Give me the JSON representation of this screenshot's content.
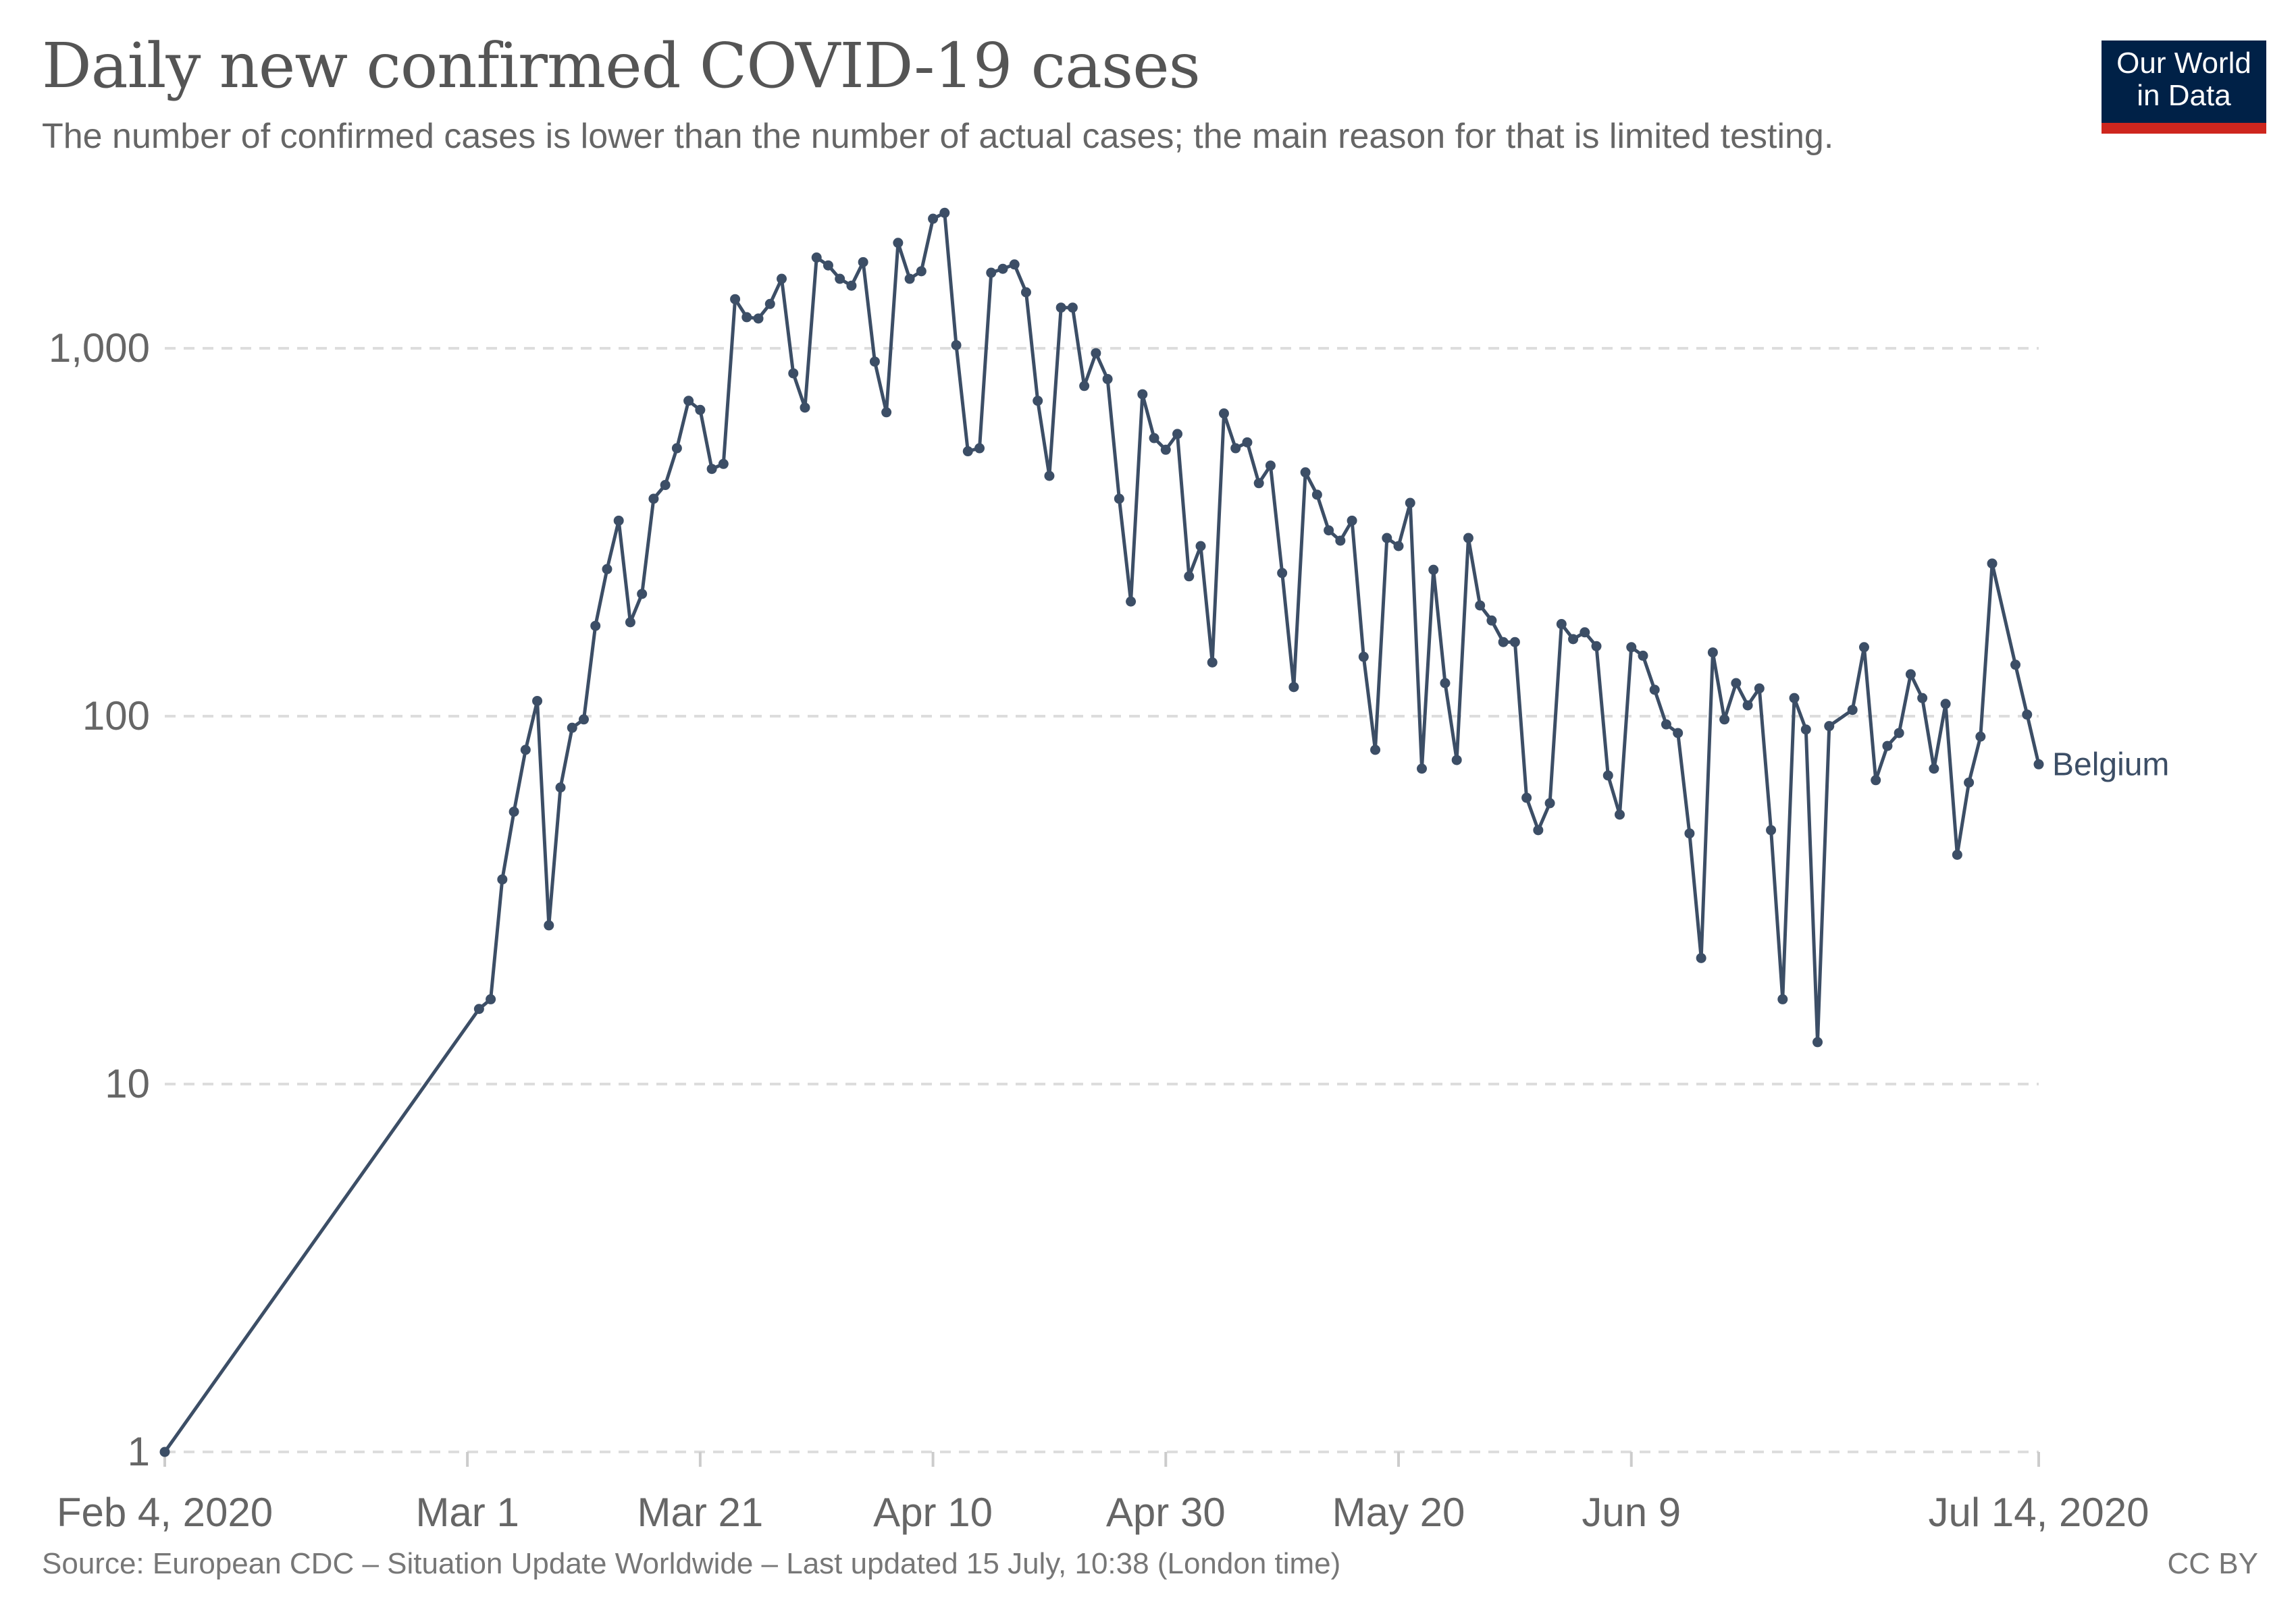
{
  "header": {
    "title": "Daily new confirmed COVID-19 cases",
    "subtitle": "The number of confirmed cases is lower than the number of actual cases; the main reason for that is limited testing.",
    "logo_line1": "Our World",
    "logo_line2": "in Data"
  },
  "footer": {
    "source": "Source: European CDC – Situation Update Worldwide – Last updated 15 July, 10:38 (London time)",
    "license": "CC BY"
  },
  "colors": {
    "series": "#3c4e66",
    "grid": "#dddddd",
    "logo_bg": "#002147",
    "logo_accent": "#ce261e"
  },
  "chart_data": {
    "type": "line",
    "title": "Daily new confirmed COVID-19 cases",
    "xlabel": "",
    "ylabel": "",
    "yscale": "log",
    "ylim": [
      1,
      2500
    ],
    "xlim": [
      "2020-02-04",
      "2020-07-14"
    ],
    "grid": true,
    "y_ticks": [
      {
        "value": 1,
        "label": "1"
      },
      {
        "value": 10,
        "label": "10"
      },
      {
        "value": 100,
        "label": "100"
      },
      {
        "value": 1000,
        "label": "1,000"
      }
    ],
    "x_ticks": [
      {
        "date": "2020-02-04",
        "label": "Feb 4, 2020"
      },
      {
        "date": "2020-03-01",
        "label": "Mar 1"
      },
      {
        "date": "2020-03-21",
        "label": "Mar 21"
      },
      {
        "date": "2020-04-10",
        "label": "Apr 10"
      },
      {
        "date": "2020-04-30",
        "label": "Apr 30"
      },
      {
        "date": "2020-05-20",
        "label": "May 20"
      },
      {
        "date": "2020-06-09",
        "label": "Jun 9"
      },
      {
        "date": "2020-07-14",
        "label": "Jul 14, 2020"
      }
    ],
    "series": [
      {
        "name": "Belgium",
        "x": [
          "2020-02-04",
          "2020-03-02",
          "2020-03-03",
          "2020-03-04",
          "2020-03-05",
          "2020-03-06",
          "2020-03-07",
          "2020-03-08",
          "2020-03-09",
          "2020-03-10",
          "2020-03-11",
          "2020-03-12",
          "2020-03-13",
          "2020-03-14",
          "2020-03-15",
          "2020-03-16",
          "2020-03-17",
          "2020-03-18",
          "2020-03-19",
          "2020-03-20",
          "2020-03-21",
          "2020-03-22",
          "2020-03-23",
          "2020-03-24",
          "2020-03-25",
          "2020-03-26",
          "2020-03-27",
          "2020-03-28",
          "2020-03-29",
          "2020-03-30",
          "2020-03-31",
          "2020-04-01",
          "2020-04-02",
          "2020-04-03",
          "2020-04-04",
          "2020-04-05",
          "2020-04-06",
          "2020-04-07",
          "2020-04-08",
          "2020-04-09",
          "2020-04-10",
          "2020-04-11",
          "2020-04-12",
          "2020-04-13",
          "2020-04-14",
          "2020-04-15",
          "2020-04-16",
          "2020-04-17",
          "2020-04-18",
          "2020-04-19",
          "2020-04-20",
          "2020-04-21",
          "2020-04-22",
          "2020-04-23",
          "2020-04-24",
          "2020-04-25",
          "2020-04-26",
          "2020-04-27",
          "2020-04-28",
          "2020-04-29",
          "2020-04-30",
          "2020-05-01",
          "2020-05-02",
          "2020-05-03",
          "2020-05-04",
          "2020-05-05",
          "2020-05-06",
          "2020-05-07",
          "2020-05-08",
          "2020-05-09",
          "2020-05-10",
          "2020-05-11",
          "2020-05-12",
          "2020-05-13",
          "2020-05-14",
          "2020-05-15",
          "2020-05-16",
          "2020-05-17",
          "2020-05-18",
          "2020-05-19",
          "2020-05-20",
          "2020-05-21",
          "2020-05-22",
          "2020-05-23",
          "2020-05-24",
          "2020-05-25",
          "2020-05-26",
          "2020-05-27",
          "2020-05-28",
          "2020-05-29",
          "2020-05-30",
          "2020-05-31",
          "2020-06-01",
          "2020-06-02",
          "2020-06-03",
          "2020-06-04",
          "2020-06-05",
          "2020-06-06",
          "2020-06-07",
          "2020-06-08",
          "2020-06-09",
          "2020-06-10",
          "2020-06-11",
          "2020-06-12",
          "2020-06-13",
          "2020-06-14",
          "2020-06-15",
          "2020-06-16",
          "2020-06-17",
          "2020-06-18",
          "2020-06-19",
          "2020-06-20",
          "2020-06-21",
          "2020-06-22",
          "2020-06-23",
          "2020-06-24",
          "2020-06-25",
          "2020-06-26",
          "2020-06-28",
          "2020-06-29",
          "2020-06-30",
          "2020-07-01",
          "2020-07-02",
          "2020-07-03",
          "2020-07-04",
          "2020-07-05",
          "2020-07-06",
          "2020-07-07",
          "2020-07-08",
          "2020-07-09",
          "2020-07-10",
          "2020-07-12",
          "2020-07-13",
          "2020-07-14"
        ],
        "y": [
          1,
          16,
          17,
          36,
          55,
          81,
          110,
          27,
          64,
          93,
          98,
          176,
          251,
          340,
          180,
          215,
          390,
          425,
          535,
          720,
          680,
          470,
          485,
          1360,
          1215,
          1205,
          1320,
          1545,
          855,
          690,
          1765,
          1680,
          1545,
          1480,
          1715,
          920,
          670,
          1935,
          1545,
          1620,
          2250,
          2335,
          1020,
          525,
          535,
          1605,
          1645,
          1690,
          1420,
          720,
          450,
          1290,
          1290,
          790,
          970,
          825,
          390,
          205,
          750,
          570,
          530,
          585,
          240,
          290,
          140,
          665,
          535,
          555,
          430,
          480,
          245,
          120,
          460,
          400,
          320,
          300,
          340,
          145,
          81,
          305,
          290,
          380,
          72,
          250,
          123,
          76,
          305,
          200,
          182,
          159,
          159,
          60,
          49,
          58,
          178,
          162,
          169,
          155,
          69,
          54,
          154,
          146,
          118,
          95,
          90,
          48,
          22,
          149,
          98,
          123,
          107,
          119,
          49,
          17,
          112,
          92,
          13,
          94,
          104,
          154,
          67,
          83,
          90,
          130,
          112,
          72,
          108,
          42,
          66,
          88,
          260,
          138,
          101,
          74
        ]
      }
    ]
  }
}
